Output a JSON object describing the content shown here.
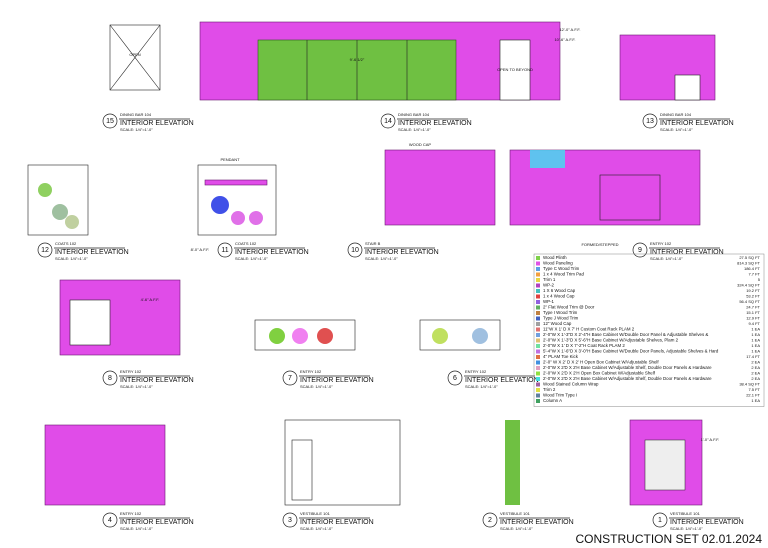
{
  "header": {
    "title": "CONSTRUCTION SET 02.01.2024"
  },
  "elevations": [
    {
      "number": "15",
      "room": "DINING BAR 104",
      "title": "INTERIOR ELEVATION",
      "scale": "SCALE:  1/4\"=1'-0\""
    },
    {
      "number": "14",
      "room": "DINING BAR 104",
      "title": "INTERIOR ELEVATION",
      "scale": "SCALE:  1/4\"=1'-0\""
    },
    {
      "number": "13",
      "room": "DINING BAR 104",
      "title": "INTERIOR ELEVATION",
      "scale": "SCALE:  1/4\"=1'-0\""
    },
    {
      "number": "12",
      "room": "COATS 102",
      "title": "INTERIOR ELEVATION",
      "scale": "SCALE:  1/4\"=1'-0\""
    },
    {
      "number": "11",
      "room": "COATS 102",
      "title": "INTERIOR ELEVATION",
      "scale": "SCALE:  1/4\"=1'-0\""
    },
    {
      "number": "10",
      "room": "STAIR B",
      "title": "INTERIOR ELEVATION",
      "scale": "SCALE:  1/4\"=1'-0\""
    },
    {
      "number": "9",
      "room": "ENTRY 102",
      "title": "INTERIOR ELEVATION",
      "scale": "SCALE:  1/4\"=1'-0\""
    },
    {
      "number": "8",
      "room": "ENTRY 102",
      "title": "INTERIOR ELEVATION",
      "scale": "SCALE:  1/4\"=1'-0\""
    },
    {
      "number": "7",
      "room": "ENTRY 102",
      "title": "INTERIOR ELEVATION",
      "scale": "SCALE:  1/4\"=1'-0\""
    },
    {
      "number": "6",
      "room": "ENTRY 102",
      "title": "INTERIOR ELEVATION",
      "scale": "SCALE:  1/4\"=1'-0\""
    },
    {
      "number": "4",
      "room": "ENTRY 102",
      "title": "INTERIOR ELEVATION",
      "scale": "SCALE:  1/4\"=1'-0\""
    },
    {
      "number": "3",
      "room": "VESTIBULE 101",
      "title": "INTERIOR ELEVATION",
      "scale": "SCALE:  1/4\"=1'-0\""
    },
    {
      "number": "2",
      "room": "VESTIBULE 101",
      "title": "INTERIOR ELEVATION",
      "scale": "SCALE:  1/4\"=1'-0\""
    },
    {
      "number": "1",
      "room": "VESTIBULE 101",
      "title": "INTERIOR ELEVATION",
      "scale": "SCALE:  1/4\"=1'-0\""
    }
  ],
  "annotations": [
    "OPEN",
    "OPEN TO BEYOND",
    "9'-6 1/2\"",
    "PENDANT",
    "WOOD CAP",
    "FORMED/STEPPED",
    "12'-0\" A.F.F.",
    "10'-6\" A.F.F.",
    "8'-0\" A.F.F.",
    "4'-6\" A.F.F.",
    "1'-0\" A.F.F."
  ],
  "legend": [
    {
      "name": "Wood Plinth",
      "color": "#7fd14a",
      "qty": "27.5 SQ FT"
    },
    {
      "name": "Wood Paneling",
      "color": "#e052e6",
      "qty": "814.3 SQ FT"
    },
    {
      "name": "Type C Wood Trim",
      "color": "#5aa0e6",
      "qty": "186.4 FT"
    },
    {
      "name": "1 x 4 Wood Trim Pad",
      "color": "#f2a040",
      "qty": "7.7 FT"
    },
    {
      "name": "Trim 1",
      "color": "#e6d840",
      "qty": "5"
    },
    {
      "name": "WP-2",
      "color": "#b040c0",
      "qty": "324.4 SQ FT"
    },
    {
      "name": "1 X 6 Wood Cap",
      "color": "#40c0c0",
      "qty": "19.2 FT"
    },
    {
      "name": "1 x 4 Wood Cap",
      "color": "#e04040",
      "qty": "53.2 FT"
    },
    {
      "name": "WP-1",
      "color": "#9060e0",
      "qty": "56.4 SQ FT"
    },
    {
      "name": "2\" Flat Wood Trim @ Door",
      "color": "#60b060",
      "qty": "24.7 FT"
    },
    {
      "name": "Type I Wood Trim",
      "color": "#c08040",
      "qty": "15.1 FT"
    },
    {
      "name": "Type J Wood Trim",
      "color": "#4060c0",
      "qty": "12.9 FT"
    },
    {
      "name": "12\" Wood Cap",
      "color": "#a0a0a0",
      "qty": "9.4 FT"
    },
    {
      "name": "11\"W X 1' D X 7' H Custom Coat Rack PLAM 2",
      "color": "#e07070",
      "qty": "1 EA"
    },
    {
      "name": "2'-0\"W X 1'-3\"D X 2'-4\"H Base Cabinet W/Double Door Panel & Adjustable Shelves &",
      "color": "#70a0e0",
      "qty": "1 EA"
    },
    {
      "name": "2'-0\"W X 1'-3\"D X 5'-6\"H Base Cabinet W/Adjustable Shelves, Plam 2",
      "color": "#e0c070",
      "qty": "1 EA"
    },
    {
      "name": "2'-0\"W X 1' D X 7'-2\"H Coat Rack PLAM 2",
      "color": "#70e0a0",
      "qty": "1 EA"
    },
    {
      "name": "5'-4\"W X 1'-6\"D X 3'-0\"H Base Cabinet W/Double Door Panels, Adjustable Shelves & Hard",
      "color": "#c070e0",
      "qty": "1 EA"
    },
    {
      "name": "4\" PLAM Toe Kick",
      "color": "#e07040",
      "qty": "17.4 FT"
    },
    {
      "name": "2'-0\" W X 2' D X 2' H Open Box Cabinet W/Adjustable Shelf",
      "color": "#4090e0",
      "qty": "2 EA"
    },
    {
      "name": "2'-0\"W X 2'D X 2'H Base Cabinet W/Adjustable Shelf, Double Door Panels & Hardware",
      "color": "#e0a0c0",
      "qty": "2 EA"
    },
    {
      "name": "2'-0\"W X 2'D X 2'H Open Box Cabinet W/Adjustable Shelf",
      "color": "#90e040",
      "qty": "2 EA"
    },
    {
      "name": "2'-0\"W X 2'D X 2'H Base Cabinet W/Adjustable Shelf, Double Door Panels & Hardware",
      "color": "#40e0e0",
      "qty": "2 EA"
    },
    {
      "name": "Wood Stained Column Wrap",
      "color": "#a060a0",
      "qty": "38.4 SQ FT"
    },
    {
      "name": "Trim 2",
      "color": "#e0e040",
      "qty": "7.5 FT"
    },
    {
      "name": "Wood Trim Type I",
      "color": "#6080a0",
      "qty": "22.1 FT"
    },
    {
      "name": "Column A",
      "color": "#40a060",
      "qty": "1 EA"
    }
  ]
}
